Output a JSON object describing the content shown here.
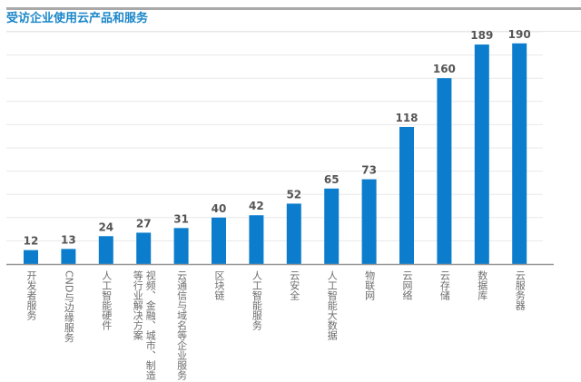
{
  "chart_data": {
    "type": "bar",
    "title": "受访企业使用云产品和服务",
    "categories": [
      "开发者服务",
      "CND与边缘服务",
      "人工智能硬件",
      "视频、金融、城市、制造等行业解决方案",
      "云通信与域名等企业服务",
      "区块链",
      "人工智能服务",
      "云安全",
      "人工智能大数据",
      "物联网",
      "云网络",
      "云存储",
      "数据库",
      "云服务器"
    ],
    "values": [
      12,
      13,
      24,
      27,
      31,
      40,
      42,
      52,
      65,
      73,
      118,
      160,
      189,
      190
    ],
    "xlabel": "",
    "ylabel": "",
    "ylim": [
      0,
      200
    ],
    "grid": true,
    "y_tick_labels_shown": false,
    "data_labels": true,
    "bar_color": "#0b7dcc",
    "label_color": "#555555"
  }
}
